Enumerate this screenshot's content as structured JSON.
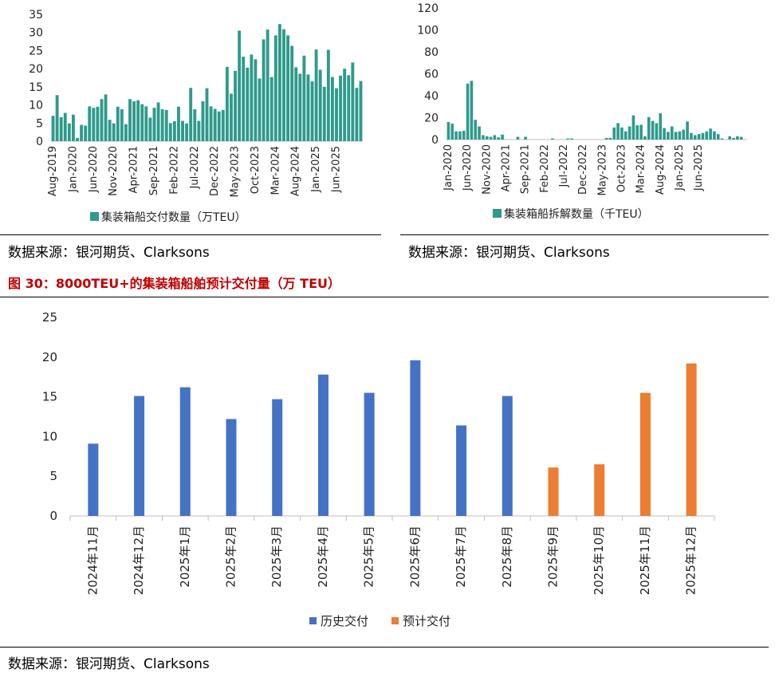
{
  "chart_data": [
    {
      "type": "bar",
      "legend": [
        "集装箱船交付数量（万TEU）"
      ],
      "legend_placement": "bottom",
      "ylim": [
        0,
        35
      ],
      "yticks": [
        0,
        5,
        10,
        15,
        20,
        25,
        30,
        35
      ],
      "xtick_labels": [
        "Aug-2019",
        "Jan-2020",
        "Jun-2020",
        "Nov-2020",
        "Apr-2021",
        "Sep-2021",
        "Feb-2022",
        "Jul-2022",
        "Dec-2022",
        "May-2023",
        "Oct-2023",
        "Mar-2024",
        "Aug-2024",
        "Jan-2025",
        "Jun-2025"
      ],
      "start": "2019-08",
      "grid": false,
      "color": "#2e9a8c",
      "series": [
        {
          "name": "集装箱船交付数量（万TEU）",
          "values": [
            7,
            12.7,
            6.6,
            7.8,
            4.9,
            7.3,
            0.9,
            4.5,
            4.3,
            9.6,
            9.2,
            9.5,
            11.6,
            12.9,
            5.9,
            4.9,
            9.5,
            8.8,
            4.7,
            11.6,
            11,
            11.3,
            10.2,
            9.6,
            6.5,
            9.2,
            10.7,
            8.8,
            8.6,
            5,
            5.5,
            9.5,
            5.6,
            4.9,
            14.7,
            8.8,
            5.6,
            11,
            14.6,
            9.6,
            8.9,
            8.2,
            8.6,
            20.5,
            13.1,
            19.4,
            30.5,
            23.3,
            20.3,
            23.9,
            22.6,
            17.3,
            28.1,
            30.8,
            17.7,
            29.2,
            32.3,
            30.9,
            29.2,
            26.3,
            20.4,
            18.6,
            23.6,
            18.4,
            16.5,
            25.3,
            19.7,
            15,
            25.2,
            17.7,
            14.6,
            18.1,
            20,
            18.2,
            21.7,
            14.7,
            16.6
          ]
        }
      ]
    },
    {
      "type": "bar",
      "legend": [
        "集装箱船拆解数量（千TEU）"
      ],
      "legend_placement": "bottom",
      "ylim": [
        0,
        120
      ],
      "yticks": [
        0,
        20,
        40,
        60,
        80,
        100,
        120
      ],
      "xtick_labels": [
        "Jan-2020",
        "Jun-2020",
        "Nov-2020",
        "Apr-2021",
        "Sep-2021",
        "Feb-2022",
        "Jul-2022",
        "Dec-2022",
        "May-2023",
        "Oct-2023",
        "Mar-2024",
        "Aug-2024",
        "Jan-2025",
        "Jun-2025"
      ],
      "start": "2020-01",
      "grid": false,
      "color": "#2e9a8c",
      "series": [
        {
          "name": "集装箱船拆解数量（千TEU）",
          "values": [
            16,
            14.5,
            7.5,
            7.5,
            8,
            51,
            53.5,
            18,
            12,
            4,
            3,
            2.5,
            4,
            2,
            4.5,
            0,
            0,
            0,
            2.5,
            0,
            2.5,
            0,
            0,
            0,
            0,
            0,
            0,
            1,
            0,
            0,
            0,
            1,
            1,
            0,
            0,
            0,
            0,
            0,
            0,
            0,
            0,
            1.5,
            1.5,
            11,
            15,
            11,
            7.5,
            12,
            22,
            13,
            13.5,
            3,
            20.5,
            17,
            15,
            24,
            10.5,
            7,
            12,
            7,
            7.5,
            9,
            16.5,
            6,
            4,
            5,
            6,
            7.5,
            10,
            7.5,
            5,
            1,
            0,
            3,
            1.5,
            3,
            2.5,
            0
          ]
        }
      ]
    },
    {
      "type": "bar",
      "title": "图 30：8000TEU+的集装箱船舶预计交付量（万 TEU）",
      "categories": [
        "2024年11月",
        "2024年12月",
        "2025年1月",
        "2025年2月",
        "2025年3月",
        "2025年4月",
        "2025年5月",
        "2025年6月",
        "2025年7月",
        "2025年8月",
        "2025年9月",
        "2025年10月",
        "2025年11月",
        "2025年12月"
      ],
      "ylim": [
        0,
        25
      ],
      "yticks": [
        0,
        5,
        10,
        15,
        20,
        25
      ],
      "grid": false,
      "legend_placement": "bottom",
      "series": [
        {
          "name": "历史交付",
          "color": "#4472c4",
          "values": [
            9.1,
            15.1,
            16.2,
            12.2,
            14.7,
            17.8,
            15.5,
            19.6,
            11.4,
            15.1,
            null,
            null,
            null,
            null
          ]
        },
        {
          "name": "预计交付",
          "color": "#ed7d31",
          "values": [
            null,
            null,
            null,
            null,
            null,
            null,
            null,
            null,
            null,
            null,
            6.1,
            6.5,
            15.5,
            19.2
          ]
        }
      ]
    }
  ],
  "sources": {
    "left": "数据来源：银河期货、Clarksons",
    "right": "数据来源：银河期货、Clarksons",
    "bottom": "数据来源：银河期货、Clarksons"
  },
  "figure_title": "图 30：8000TEU+的集装箱船舶预计交付量（万 TEU）",
  "colors": {
    "teal": "#2e9a8c",
    "blue": "#4472c4",
    "orange": "#ed7d31",
    "title_red": "#c00000"
  }
}
